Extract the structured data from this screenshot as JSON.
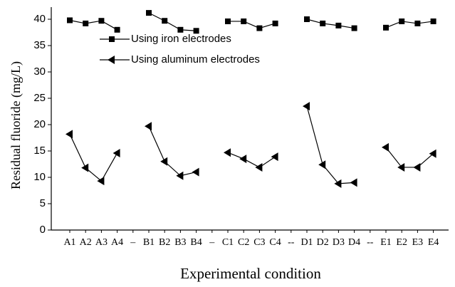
{
  "chart_data": {
    "type": "line",
    "xlabel": "Experimental condition",
    "ylabel": "Residual fluoride (mg/L)",
    "categories": [
      "A1",
      "A2",
      "A3",
      "A4",
      "–",
      "B1",
      "B2",
      "B3",
      "B4",
      "–",
      "C1",
      "C2",
      "C3",
      "C4",
      "--",
      "D1",
      "D2",
      "D3",
      "D4",
      "--",
      "E1",
      "E2",
      "E3",
      "E4"
    ],
    "series": [
      {
        "name": "Using iron electrodes",
        "color": "#000000",
        "marker": "square",
        "values": [
          39.8,
          39.2,
          39.7,
          38.0,
          null,
          41.2,
          39.7,
          38.0,
          37.8,
          null,
          39.6,
          39.6,
          38.3,
          39.2,
          null,
          40.0,
          39.2,
          38.8,
          38.3,
          null,
          38.4,
          39.6,
          39.2,
          39.6
        ]
      },
      {
        "name": "Using aluminum electrodes",
        "color": "#000000",
        "marker": "triangle-left",
        "values": [
          18.2,
          11.8,
          9.3,
          14.6,
          null,
          19.7,
          13.0,
          10.3,
          11.0,
          null,
          14.7,
          13.5,
          11.9,
          13.9,
          null,
          23.5,
          12.4,
          8.8,
          9.0,
          null,
          15.7,
          11.9,
          11.9,
          14.5
        ]
      }
    ],
    "ylim": [
      0,
      42
    ],
    "yticks": [
      0,
      5,
      10,
      15,
      20,
      25,
      30,
      35,
      40
    ],
    "legend": "upper left",
    "grid": false
  }
}
